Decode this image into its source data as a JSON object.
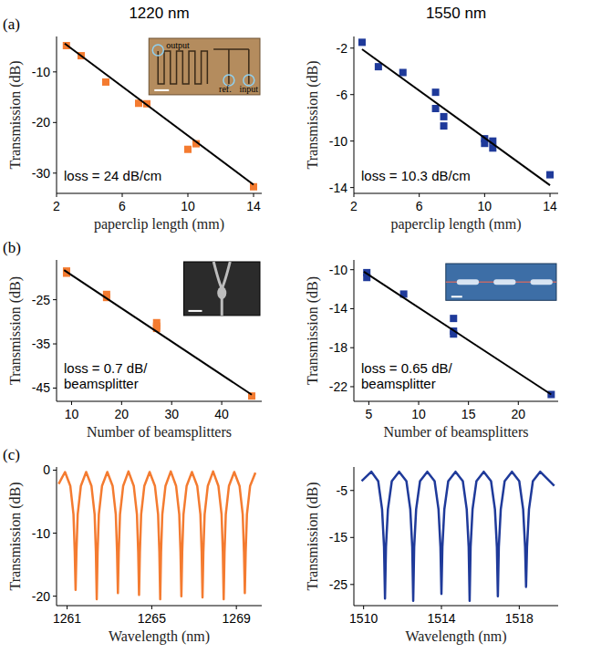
{
  "headers": {
    "columns": [
      "1220 nm",
      "1550 nm"
    ],
    "panels": [
      "(a)",
      "(b)",
      "(c)"
    ]
  },
  "chart_data": [
    {
      "type": "scatter",
      "xlabel": "paperclip length (mm)",
      "ylabel": "Transmission (dB)",
      "xlim": [
        2,
        14.5
      ],
      "ylim": [
        -34,
        -3
      ],
      "xticks": [
        2,
        6,
        10,
        14
      ],
      "yticks": [
        -30,
        -20,
        -10
      ],
      "annotation": "loss = 24 dB/cm",
      "inset_labels": [
        "output",
        "ref.",
        "input"
      ],
      "series": [
        {
          "type": "scatter",
          "color": "#f47b30",
          "marker": "square",
          "x": [
            2.6,
            3.5,
            5,
            7,
            7.5,
            10,
            10.5,
            14
          ],
          "values": [
            -4.8,
            -6.8,
            -12,
            -16.2,
            -16.3,
            -25.3,
            -24.2,
            -32.7
          ]
        },
        {
          "type": "line",
          "color": "#000000",
          "line_style": "solid",
          "x": [
            2.5,
            14
          ],
          "values": [
            -4.4,
            -32.3
          ]
        }
      ]
    },
    {
      "type": "scatter",
      "xlabel": "paperclip length (mm)",
      "ylabel": "Transmission (dB)",
      "xlim": [
        2,
        14.5
      ],
      "ylim": [
        -14.5,
        -1
      ],
      "xticks": [
        2,
        6,
        10,
        14
      ],
      "yticks": [
        -14,
        -10,
        -6,
        -2
      ],
      "annotation": "loss = 10.3 dB/cm",
      "series": [
        {
          "type": "scatter",
          "color": "#1f3a9a",
          "marker": "square",
          "x": [
            2.5,
            3.5,
            5,
            7,
            7,
            7.5,
            7.5,
            10,
            10,
            10.5,
            10.5,
            14
          ],
          "values": [
            -1.5,
            -3.6,
            -4.1,
            -5.8,
            -7.2,
            -7.9,
            -8.7,
            -9.8,
            -10.2,
            -10,
            -10.6,
            -12.9
          ]
        },
        {
          "type": "line",
          "color": "#000000",
          "line_style": "solid",
          "x": [
            2.5,
            14
          ],
          "values": [
            -2.1,
            -13.8
          ]
        }
      ]
    },
    {
      "type": "scatter",
      "xlabel": "Number of beamsplitters",
      "ylabel": "Transmission (dB)",
      "xlim": [
        7,
        48
      ],
      "ylim": [
        -48,
        -16
      ],
      "xticks": [
        10,
        20,
        30,
        40
      ],
      "yticks": [
        -45,
        -35,
        -25
      ],
      "annotation": "loss = 0.7 dB/beamsplitter",
      "series": [
        {
          "type": "scatter",
          "color": "#f47b30",
          "marker": "square",
          "x": [
            9,
            9,
            17,
            17,
            27,
            27,
            27,
            46
          ],
          "values": [
            -18.5,
            -19,
            -23.8,
            -24.5,
            -30.2,
            -31,
            -31.5,
            -46.8
          ]
        },
        {
          "type": "line",
          "color": "#000000",
          "line_style": "solid",
          "x": [
            8.5,
            46
          ],
          "values": [
            -18.3,
            -46.5
          ]
        }
      ]
    },
    {
      "type": "scatter",
      "xlabel": "Number of beamsplitters",
      "ylabel": "Transmission (dB)",
      "xlim": [
        3.5,
        24
      ],
      "ylim": [
        -23.5,
        -9
      ],
      "xticks": [
        5,
        10,
        15,
        20
      ],
      "yticks": [
        -22,
        -18,
        -14,
        -10
      ],
      "annotation": "loss = 0.65 dB/beamsplitter",
      "series": [
        {
          "type": "scatter",
          "color": "#1f3a9a",
          "marker": "square",
          "x": [
            4.8,
            4.8,
            8.5,
            13.5,
            13.5,
            13.5,
            23.3
          ],
          "values": [
            -10.3,
            -10.8,
            -12.5,
            -15,
            -16.3,
            -16.6,
            -22.8
          ]
        },
        {
          "type": "line",
          "color": "#000000",
          "line_style": "solid",
          "x": [
            4.5,
            23.3
          ],
          "values": [
            -10.2,
            -22.8
          ]
        }
      ]
    },
    {
      "type": "line",
      "xlabel": "Wavelength (nm)",
      "ylabel": "Transmission (dB)",
      "xlim": [
        1260.5,
        1270.2
      ],
      "ylim": [
        -21.5,
        0.5
      ],
      "xticks": [
        1261,
        1265,
        1269
      ],
      "yticks": [
        -20,
        -10,
        0
      ],
      "series": [
        {
          "type": "line",
          "color": "#f47b30",
          "line_style": "solid",
          "x": [
            1260.6,
            1260.9,
            1261.15,
            1261.3,
            1261.36,
            1261.4,
            1261.44,
            1261.5,
            1261.65,
            1261.9,
            1262.15,
            1262.3,
            1262.36,
            1262.4,
            1262.44,
            1262.5,
            1262.65,
            1262.9,
            1263.15,
            1263.3,
            1263.36,
            1263.4,
            1263.44,
            1263.5,
            1263.65,
            1263.9,
            1264.15,
            1264.3,
            1264.36,
            1264.4,
            1264.44,
            1264.5,
            1264.65,
            1264.9,
            1265.15,
            1265.3,
            1265.36,
            1265.4,
            1265.44,
            1265.5,
            1265.65,
            1265.9,
            1266.15,
            1266.3,
            1266.36,
            1266.4,
            1266.44,
            1266.5,
            1266.65,
            1266.9,
            1267.15,
            1267.3,
            1267.36,
            1267.4,
            1267.44,
            1267.5,
            1267.65,
            1267.9,
            1268.15,
            1268.3,
            1268.36,
            1268.4,
            1268.44,
            1268.5,
            1268.65,
            1268.9,
            1269.15,
            1269.3,
            1269.36,
            1269.4,
            1269.44,
            1269.5,
            1269.65,
            1269.9
          ],
          "values": [
            -2.2,
            -0.3,
            -2.5,
            -7,
            -13,
            -19,
            -13,
            -7,
            -2.5,
            -0.3,
            -2.5,
            -7,
            -13,
            -20.5,
            -13,
            -7,
            -2.5,
            -0.3,
            -2.5,
            -7,
            -13,
            -19.5,
            -13,
            -7,
            -2.5,
            -0.2,
            -2.5,
            -7,
            -13,
            -19.8,
            -13,
            -7,
            -2.5,
            -0.3,
            -2.5,
            -7,
            -13,
            -20.5,
            -13,
            -7,
            -2.5,
            -0.2,
            -2.5,
            -7,
            -13,
            -20,
            -13,
            -7,
            -2.5,
            -0.3,
            -2.5,
            -7,
            -13,
            -20.2,
            -13,
            -7,
            -2.5,
            -0.2,
            -2.5,
            -7,
            -13,
            -20.5,
            -13,
            -7,
            -2.5,
            -0.3,
            -2.5,
            -7,
            -13,
            -19.5,
            -13,
            -7,
            -2.5,
            -0.4
          ]
        }
      ]
    },
    {
      "type": "line",
      "xlabel": "Wavelength (nm)",
      "ylabel": "Transmission (dB)",
      "xlim": [
        1509.5,
        1520
      ],
      "ylim": [
        -29.5,
        0
      ],
      "xticks": [
        1510,
        1514,
        1518
      ],
      "yticks": [
        -25,
        -15,
        -5
      ],
      "series": [
        {
          "type": "line",
          "color": "#1f3a9a",
          "line_style": "solid",
          "x": [
            1509.9,
            1510.4,
            1510.75,
            1510.95,
            1511.05,
            1511.1,
            1511.15,
            1511.25,
            1511.45,
            1511.825,
            1512.2,
            1512.4,
            1512.5,
            1512.55,
            1512.6,
            1512.7,
            1512.9,
            1513.275,
            1513.65,
            1513.85,
            1513.95,
            1514,
            1514.05,
            1514.15,
            1514.35,
            1514.725,
            1515.1,
            1515.3,
            1515.4,
            1515.45,
            1515.5,
            1515.6,
            1515.8,
            1516.175,
            1516.55,
            1516.75,
            1516.85,
            1516.9,
            1516.95,
            1517.05,
            1517.25,
            1517.625,
            1518,
            1518.2,
            1518.3,
            1518.35,
            1518.4,
            1518.5,
            1518.7,
            1519.075,
            1519.8
          ],
          "values": [
            -3,
            -1,
            -3,
            -9,
            -17,
            -28,
            -17,
            -9,
            -3,
            -1,
            -3,
            -9,
            -17,
            -28.5,
            -17,
            -9,
            -3,
            -1,
            -3,
            -9,
            -17,
            -27,
            -17,
            -9,
            -3,
            -1,
            -3,
            -9,
            -17,
            -28.5,
            -17,
            -9,
            -3,
            -1,
            -3,
            -9,
            -17,
            -27.5,
            -17,
            -9,
            -3,
            -1,
            -3,
            -9,
            -17,
            -25.5,
            -17,
            -9,
            -3,
            -1,
            -4
          ]
        }
      ]
    }
  ]
}
